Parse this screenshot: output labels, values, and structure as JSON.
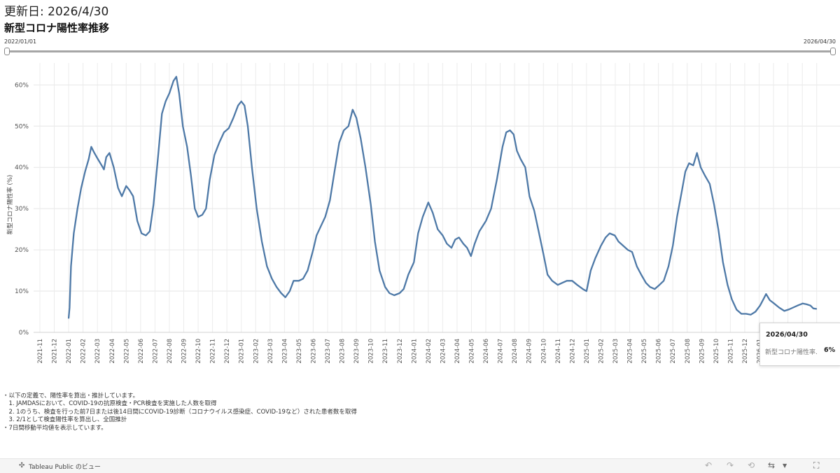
{
  "header": {
    "updated": "更新日: 2026/4/30",
    "title": "新型コロナ陽性率推移"
  },
  "slider": {
    "start_label": "2022/01/01",
    "end_label": "2026/04/30"
  },
  "chart_data": {
    "type": "line",
    "ylabel": "新型コロナ陽性率 (%)",
    "xlabel": "",
    "title": "",
    "ylim": [
      0,
      66
    ],
    "yticks": [
      0,
      10,
      20,
      30,
      40,
      50,
      60
    ],
    "ytick_labels": [
      "0%",
      "10%",
      "20%",
      "30%",
      "40%",
      "50%",
      "60%"
    ],
    "grid": true,
    "line_color": "#4e79a7",
    "categories": [
      "2021-11",
      "2021-12",
      "2022-01",
      "2022-02",
      "2022-03",
      "2022-04",
      "2022-05",
      "2022-06",
      "2022-07",
      "2022-08",
      "2022-09",
      "2022-10",
      "2022-11",
      "2022-12",
      "2023-01",
      "2023-02",
      "2023-03",
      "2023-04",
      "2023-05",
      "2023-06",
      "2023-07",
      "2023-08",
      "2023-09",
      "2023-10",
      "2023-11",
      "2023-12",
      "2024-01",
      "2024-02",
      "2024-03",
      "2024-04",
      "2024-05",
      "2024-06",
      "2024-07",
      "2024-08",
      "2024-09",
      "2024-10",
      "2024-11",
      "2024-12",
      "2025-01",
      "2025-02",
      "2025-03",
      "2025-04",
      "2025-05",
      "2025-06",
      "2025-07",
      "2025-08",
      "2025-09",
      "2025-10",
      "2025-11",
      "2025-12",
      "2026-01",
      "2026-02",
      "2026-03",
      "2026-04",
      "2026-05"
    ],
    "series": [
      {
        "points": [
          [
            "2022-01-01",
            3.5
          ],
          [
            "2022-01-03",
            6
          ],
          [
            "2022-01-06",
            16
          ],
          [
            "2022-01-12",
            24
          ],
          [
            "2022-01-20",
            30
          ],
          [
            "2022-01-28",
            35
          ],
          [
            "2022-02-05",
            39
          ],
          [
            "2022-02-12",
            42
          ],
          [
            "2022-02-17",
            45
          ],
          [
            "2022-02-23",
            43.5
          ],
          [
            "2022-03-02",
            42
          ],
          [
            "2022-03-10",
            40.5
          ],
          [
            "2022-03-15",
            39.5
          ],
          [
            "2022-03-20",
            42.5
          ],
          [
            "2022-03-27",
            43.5
          ],
          [
            "2022-04-05",
            40
          ],
          [
            "2022-04-14",
            35
          ],
          [
            "2022-04-22",
            33
          ],
          [
            "2022-05-01",
            35.5
          ],
          [
            "2022-05-08",
            34.5
          ],
          [
            "2022-05-16",
            33
          ],
          [
            "2022-05-25",
            27
          ],
          [
            "2022-06-03",
            24
          ],
          [
            "2022-06-12",
            23.5
          ],
          [
            "2022-06-20",
            24.5
          ],
          [
            "2022-06-28",
            31
          ],
          [
            "2022-07-08",
            43
          ],
          [
            "2022-07-16",
            53
          ],
          [
            "2022-07-24",
            56
          ],
          [
            "2022-08-01",
            58
          ],
          [
            "2022-08-10",
            61
          ],
          [
            "2022-08-16",
            62
          ],
          [
            "2022-08-22",
            58
          ],
          [
            "2022-08-30",
            50
          ],
          [
            "2022-09-08",
            45
          ],
          [
            "2022-09-16",
            38
          ],
          [
            "2022-09-24",
            30
          ],
          [
            "2022-10-01",
            28
          ],
          [
            "2022-10-10",
            28.5
          ],
          [
            "2022-10-18",
            30
          ],
          [
            "2022-10-26",
            37
          ],
          [
            "2022-11-05",
            43
          ],
          [
            "2022-11-15",
            46
          ],
          [
            "2022-11-25",
            48.5
          ],
          [
            "2022-12-05",
            49.5
          ],
          [
            "2022-12-15",
            52
          ],
          [
            "2022-12-25",
            55
          ],
          [
            "2023-01-01",
            56
          ],
          [
            "2023-01-08",
            55
          ],
          [
            "2023-01-15",
            50
          ],
          [
            "2023-01-24",
            40
          ],
          [
            "2023-02-03",
            30
          ],
          [
            "2023-02-13",
            22
          ],
          [
            "2023-02-23",
            16
          ],
          [
            "2023-03-05",
            13
          ],
          [
            "2023-03-15",
            11
          ],
          [
            "2023-03-25",
            9.5
          ],
          [
            "2023-04-03",
            8.5
          ],
          [
            "2023-04-12",
            10
          ],
          [
            "2023-04-20",
            12.5
          ],
          [
            "2023-05-01",
            12.5
          ],
          [
            "2023-05-10",
            13
          ],
          [
            "2023-05-20",
            15
          ],
          [
            "2023-06-01",
            20
          ],
          [
            "2023-06-08",
            23.5
          ],
          [
            "2023-06-16",
            25.5
          ],
          [
            "2023-06-26",
            28
          ],
          [
            "2023-07-06",
            32
          ],
          [
            "2023-07-16",
            39
          ],
          [
            "2023-07-26",
            46
          ],
          [
            "2023-08-05",
            49
          ],
          [
            "2023-08-15",
            50
          ],
          [
            "2023-08-24",
            54
          ],
          [
            "2023-09-01",
            52
          ],
          [
            "2023-09-10",
            47
          ],
          [
            "2023-09-20",
            40
          ],
          [
            "2023-10-01",
            31
          ],
          [
            "2023-10-10",
            22
          ],
          [
            "2023-10-20",
            15
          ],
          [
            "2023-11-01",
            11
          ],
          [
            "2023-11-10",
            9.5
          ],
          [
            "2023-11-20",
            9
          ],
          [
            "2023-12-01",
            9.5
          ],
          [
            "2023-12-10",
            10.5
          ],
          [
            "2023-12-20",
            14
          ],
          [
            "2024-01-01",
            17
          ],
          [
            "2024-01-10",
            24
          ],
          [
            "2024-01-20",
            28
          ],
          [
            "2024-02-01",
            31.5
          ],
          [
            "2024-02-10",
            29
          ],
          [
            "2024-02-20",
            25
          ],
          [
            "2024-03-01",
            23.5
          ],
          [
            "2024-03-10",
            21.5
          ],
          [
            "2024-03-20",
            20.5
          ],
          [
            "2024-03-28",
            22.5
          ],
          [
            "2024-04-05",
            23
          ],
          [
            "2024-04-14",
            21.5
          ],
          [
            "2024-04-22",
            20.5
          ],
          [
            "2024-04-30",
            18.5
          ],
          [
            "2024-05-08",
            21.5
          ],
          [
            "2024-05-18",
            24.5
          ],
          [
            "2024-06-01",
            27
          ],
          [
            "2024-06-12",
            30
          ],
          [
            "2024-06-24",
            37
          ],
          [
            "2024-07-06",
            45
          ],
          [
            "2024-07-14",
            48.5
          ],
          [
            "2024-07-22",
            49
          ],
          [
            "2024-07-30",
            48
          ],
          [
            "2024-08-06",
            44
          ],
          [
            "2024-08-14",
            42
          ],
          [
            "2024-08-24",
            40
          ],
          [
            "2024-09-02",
            33
          ],
          [
            "2024-09-12",
            29.5
          ],
          [
            "2024-09-22",
            24
          ],
          [
            "2024-10-01",
            19
          ],
          [
            "2024-10-10",
            14
          ],
          [
            "2024-10-20",
            12.5
          ],
          [
            "2024-11-01",
            11.5
          ],
          [
            "2024-11-10",
            12
          ],
          [
            "2024-11-20",
            12.5
          ],
          [
            "2024-12-01",
            12.5
          ],
          [
            "2024-12-12",
            11.5
          ],
          [
            "2024-12-24",
            10.5
          ],
          [
            "2025-01-01",
            10
          ],
          [
            "2025-01-10",
            15
          ],
          [
            "2025-01-20",
            18
          ],
          [
            "2025-02-01",
            21
          ],
          [
            "2025-02-10",
            23
          ],
          [
            "2025-02-18",
            24
          ],
          [
            "2025-02-28",
            23.5
          ],
          [
            "2025-03-08",
            22
          ],
          [
            "2025-03-18",
            21
          ],
          [
            "2025-03-28",
            20
          ],
          [
            "2025-04-06",
            19.5
          ],
          [
            "2025-04-16",
            16
          ],
          [
            "2025-04-25",
            14
          ],
          [
            "2025-05-05",
            12
          ],
          [
            "2025-05-14",
            11
          ],
          [
            "2025-05-24",
            10.5
          ],
          [
            "2025-06-03",
            11.5
          ],
          [
            "2025-06-12",
            12.5
          ],
          [
            "2025-06-22",
            16
          ],
          [
            "2025-07-01",
            21
          ],
          [
            "2025-07-10",
            28
          ],
          [
            "2025-07-20",
            34
          ],
          [
            "2025-07-28",
            39
          ],
          [
            "2025-08-05",
            41
          ],
          [
            "2025-08-14",
            40.5
          ],
          [
            "2025-08-22",
            43.5
          ],
          [
            "2025-08-30",
            40
          ],
          [
            "2025-09-08",
            38
          ],
          [
            "2025-09-18",
            36
          ],
          [
            "2025-09-27",
            31
          ],
          [
            "2025-10-06",
            25
          ],
          [
            "2025-10-16",
            17
          ],
          [
            "2025-10-26",
            11.5
          ],
          [
            "2025-11-04",
            8
          ],
          [
            "2025-11-14",
            5.5
          ],
          [
            "2025-11-24",
            4.5
          ],
          [
            "2025-12-04",
            4.5
          ],
          [
            "2025-12-14",
            4.3
          ],
          [
            "2025-12-24",
            5
          ],
          [
            "2026-01-03",
            6.5
          ],
          [
            "2026-01-10",
            8
          ],
          [
            "2026-01-16",
            9.3
          ],
          [
            "2026-01-24",
            7.8
          ],
          [
            "2026-02-02",
            7
          ],
          [
            "2026-02-12",
            6
          ],
          [
            "2026-02-22",
            5.2
          ],
          [
            "2026-03-04",
            5.6
          ],
          [
            "2026-03-14",
            6.1
          ],
          [
            "2026-03-24",
            6.6
          ],
          [
            "2026-04-02",
            7
          ],
          [
            "2026-04-10",
            6.8
          ],
          [
            "2026-04-18",
            6.5
          ],
          [
            "2026-04-24",
            5.8
          ],
          [
            "2026-04-30",
            5.7
          ]
        ]
      }
    ]
  },
  "tooltip": {
    "date": "2026/04/30",
    "label": "新型コロナ陽性率.",
    "value": "6%"
  },
  "footnotes": [
    "・以下の定義で、陽性率を算出・推計しています。",
    "　1. JAMDASにおいて、COVID-19の抗原検査・PCR検査を実施した人数を取得",
    "　2. 1のうち、検査を行った前7日または後14日間にCOVID-19診断（コロナウイルス感染症、COVID-19など）された患者数を取得",
    "　3. 2/1として検査陽性率を算出し、全国推計",
    "・7日間移動平均値を表示しています。"
  ],
  "bottombar": {
    "label": "Tableau Public のビュー"
  }
}
